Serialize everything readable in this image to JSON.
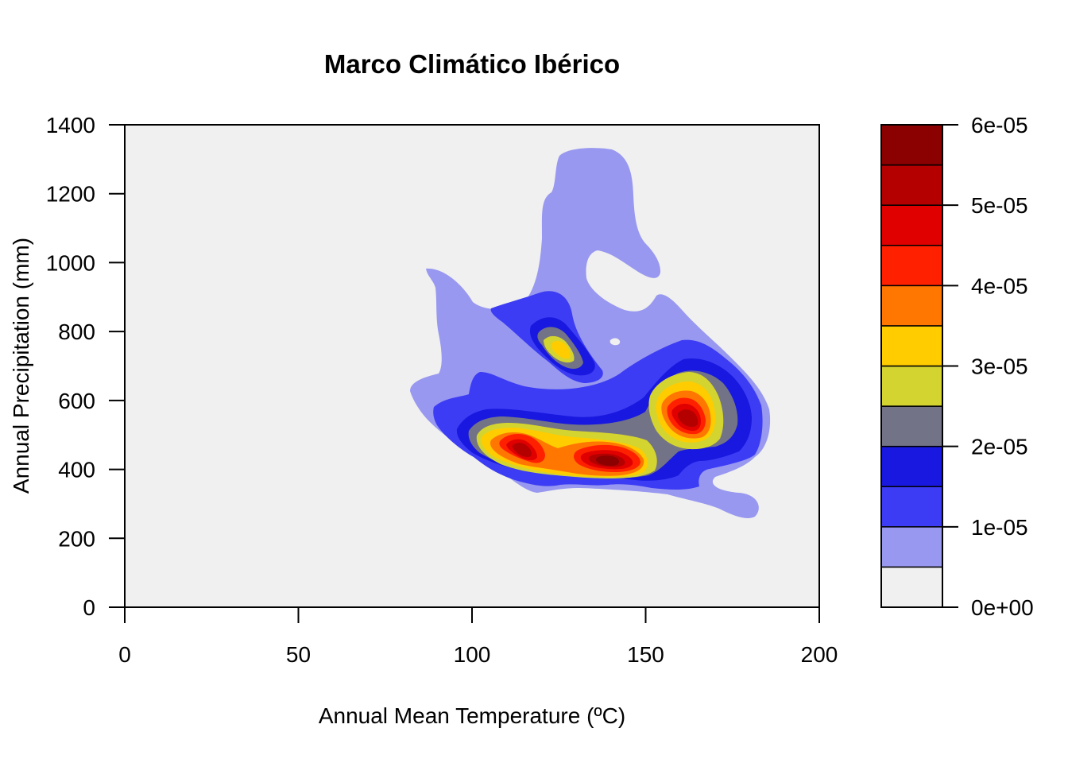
{
  "chart_data": {
    "type": "filled-contour",
    "title": "Marco Climático Ibérico",
    "xlabel": "Annual Mean Temperature (ºC)",
    "ylabel": "Annual Precipitation (mm)",
    "xlim": [
      0,
      200
    ],
    "ylim": [
      0,
      1400
    ],
    "xticks": [
      0,
      50,
      100,
      150,
      200
    ],
    "yticks": [
      0,
      200,
      400,
      600,
      800,
      1000,
      1200,
      1400
    ],
    "grid": false,
    "colorbar": {
      "position": "right",
      "levels": [
        0,
        5e-06,
        1e-05,
        1.5e-05,
        2e-05,
        2.5e-05,
        3e-05,
        3.5e-05,
        4e-05,
        4.5e-05,
        5e-05,
        5.5e-05,
        6e-05
      ],
      "colors": [
        "#F0F0F0",
        "#9898F0",
        "#3C3CF4",
        "#1818E0",
        "#727386",
        "#D4D430",
        "#FFCC00",
        "#FF7700",
        "#FF2000",
        "#E00000",
        "#B50000",
        "#8B0000"
      ],
      "tick_values": [
        0,
        1e-05,
        2e-05,
        3e-05,
        4e-05,
        5e-05,
        6e-05
      ],
      "tick_labels": [
        "0e+00",
        "1e-05",
        "2e-05",
        "3e-05",
        "4e-05",
        "5e-05",
        "6e-05"
      ]
    },
    "density_peaks": [
      {
        "x": 140,
        "y": 430,
        "density": 5.8e-05
      },
      {
        "x": 117,
        "y": 460,
        "density": 5.2e-05
      },
      {
        "x": 164,
        "y": 545,
        "density": 5.2e-05
      },
      {
        "x": 125,
        "y": 745,
        "density": 3.1e-05
      }
    ]
  }
}
